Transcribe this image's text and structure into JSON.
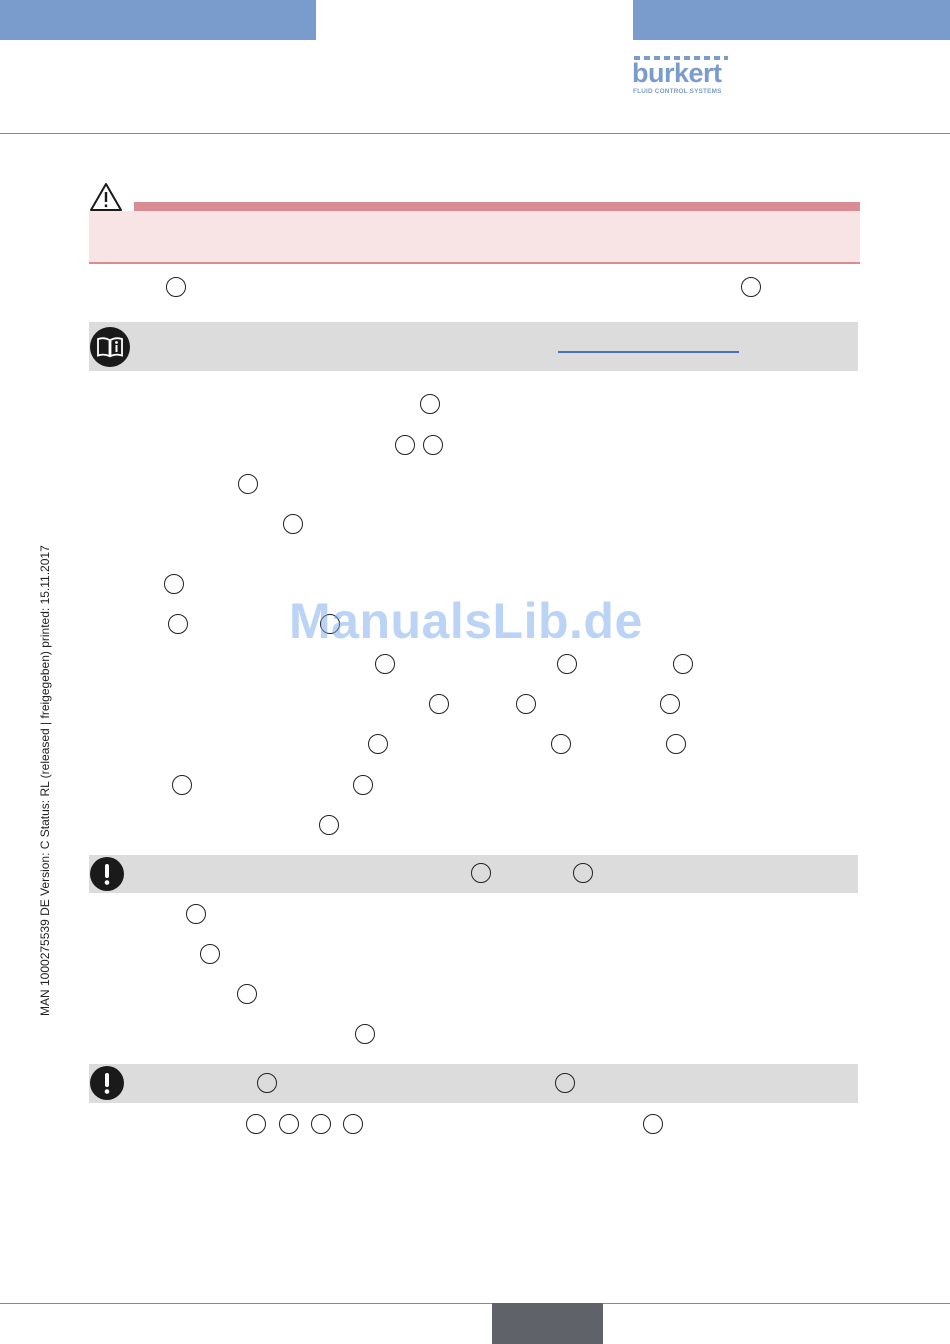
{
  "brand": {
    "name": "burkert",
    "tagline": "FLUID CONTROL SYSTEMS",
    "color": "#7a9ccc"
  },
  "watermark": "ManualsLib.de",
  "side_label": "MAN  1000275539  DE  Version: C Status: RL (released | freigegeben)  printed: 15.11.2017",
  "colors": {
    "warning": "#d98c94",
    "warning_bg": "#f9e4e5",
    "note_bg": "#dcdcdc",
    "page_tab": "#5f6369"
  },
  "icons": [
    "warning-triangle-icon",
    "manual-info-icon",
    "important-exclamation-icon"
  ]
}
